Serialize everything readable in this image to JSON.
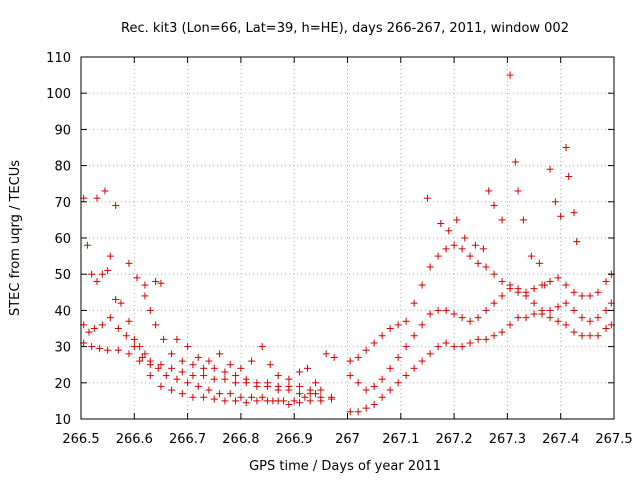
{
  "chart_data": {
    "type": "scatter",
    "title": "Rec. kit3 (Lon=66, Lat=39, h=HE), days 266-267, 2011, window 002",
    "xlabel": "GPS time / Days of year 2011",
    "ylabel": "STEC from uqrg / TECUs",
    "xlim": [
      266.5,
      267.5
    ],
    "ylim": [
      10,
      110
    ],
    "x_ticks": [
      266.5,
      266.6,
      266.7,
      266.8,
      266.9,
      267.0,
      267.1,
      267.2,
      267.3,
      267.4,
      267.5
    ],
    "x_tick_labels": [
      "266.5",
      "266.6",
      "266.7",
      "266.8",
      "266.9",
      "267",
      "267.1",
      "267.2",
      "267.3",
      "267.4",
      "267.5"
    ],
    "y_ticks": [
      10,
      20,
      30,
      40,
      50,
      60,
      70,
      80,
      90,
      100,
      110
    ],
    "y_tick_labels": [
      "10",
      "20",
      "30",
      "40",
      "50",
      "60",
      "70",
      "80",
      "90",
      "100",
      "110"
    ],
    "grid": true,
    "marker": "+",
    "color": "#d40000",
    "series": [
      {
        "name": "arc-a",
        "points": [
          [
            266.505,
            71
          ],
          [
            266.512,
            58
          ],
          [
            266.52,
            50
          ],
          [
            266.53,
            48
          ],
          [
            266.54,
            50
          ],
          [
            266.55,
            51
          ],
          [
            266.555,
            55
          ],
          [
            266.565,
            43
          ],
          [
            266.575,
            42
          ],
          [
            266.59,
            37
          ],
          [
            266.6,
            32
          ],
          [
            266.61,
            30
          ],
          [
            266.62,
            28
          ],
          [
            266.63,
            26
          ],
          [
            266.65,
            25
          ],
          [
            266.67,
            24
          ],
          [
            266.69,
            23
          ],
          [
            266.71,
            22
          ],
          [
            266.73,
            22
          ],
          [
            266.75,
            21
          ],
          [
            266.77,
            21
          ],
          [
            266.79,
            20
          ],
          [
            266.81,
            20
          ],
          [
            266.83,
            19
          ],
          [
            266.85,
            19
          ],
          [
            266.87,
            18
          ],
          [
            266.89,
            18
          ],
          [
            266.91,
            17
          ],
          [
            266.93,
            17
          ],
          [
            266.95,
            16
          ],
          [
            266.97,
            16
          ]
        ]
      },
      {
        "name": "arc-b",
        "points": [
          [
            266.505,
            36
          ],
          [
            266.515,
            34
          ],
          [
            266.525,
            35
          ],
          [
            266.54,
            36
          ],
          [
            266.555,
            38
          ],
          [
            266.57,
            35
          ],
          [
            266.585,
            33
          ],
          [
            266.6,
            30
          ],
          [
            266.615,
            27
          ],
          [
            266.63,
            25
          ],
          [
            266.645,
            24
          ],
          [
            266.66,
            22
          ],
          [
            266.68,
            21
          ],
          [
            266.7,
            20
          ],
          [
            266.72,
            19
          ],
          [
            266.74,
            18
          ],
          [
            266.76,
            17
          ],
          [
            266.78,
            17
          ],
          [
            266.8,
            16
          ],
          [
            266.82,
            16
          ],
          [
            266.84,
            16
          ],
          [
            266.86,
            15
          ],
          [
            266.88,
            15
          ],
          [
            266.9,
            15
          ],
          [
            266.92,
            16
          ],
          [
            266.94,
            17
          ]
        ]
      },
      {
        "name": "arc-c",
        "points": [
          [
            266.505,
            31
          ],
          [
            266.52,
            30
          ],
          [
            266.535,
            29.5
          ],
          [
            266.55,
            29
          ],
          [
            266.57,
            29
          ],
          [
            266.59,
            28
          ],
          [
            266.61,
            26
          ],
          [
            266.63,
            22
          ],
          [
            266.65,
            19
          ],
          [
            266.67,
            18
          ],
          [
            266.69,
            17
          ],
          [
            266.71,
            16
          ],
          [
            266.73,
            16
          ],
          [
            266.75,
            15.5
          ],
          [
            266.77,
            15
          ],
          [
            266.79,
            15
          ],
          [
            266.81,
            14.5
          ],
          [
            266.83,
            15
          ],
          [
            266.85,
            15
          ],
          [
            266.87,
            15
          ],
          [
            266.89,
            14
          ],
          [
            266.91,
            14.5
          ],
          [
            266.93,
            15
          ],
          [
            266.95,
            15
          ],
          [
            266.97,
            15.5
          ]
        ]
      },
      {
        "name": "arc-d",
        "points": [
          [
            266.53,
            71
          ],
          [
            266.545,
            73
          ],
          [
            266.565,
            69
          ],
          [
            266.59,
            53
          ],
          [
            266.605,
            49
          ],
          [
            266.62,
            47
          ],
          [
            266.64,
            48
          ],
          [
            266.65,
            47.5
          ],
          [
            266.62,
            44
          ],
          [
            266.63,
            40
          ],
          [
            266.64,
            36
          ],
          [
            266.655,
            32
          ],
          [
            266.67,
            28
          ],
          [
            266.69,
            26
          ],
          [
            266.71,
            25
          ],
          [
            266.73,
            24
          ],
          [
            266.75,
            24
          ],
          [
            266.77,
            23
          ],
          [
            266.79,
            22
          ],
          [
            266.81,
            21
          ],
          [
            266.83,
            20
          ],
          [
            266.85,
            20
          ],
          [
            266.87,
            19
          ],
          [
            266.89,
            19
          ],
          [
            266.91,
            19
          ],
          [
            266.93,
            18
          ],
          [
            266.95,
            18
          ]
        ]
      },
      {
        "name": "arc-e",
        "points": [
          [
            266.68,
            32
          ],
          [
            266.7,
            30
          ],
          [
            266.72,
            27
          ],
          [
            266.74,
            26
          ],
          [
            266.76,
            28
          ],
          [
            266.78,
            25
          ],
          [
            266.8,
            24
          ],
          [
            266.82,
            26
          ],
          [
            266.84,
            30
          ],
          [
            266.855,
            25
          ],
          [
            266.87,
            22
          ],
          [
            266.89,
            21
          ],
          [
            266.91,
            23
          ],
          [
            266.925,
            24
          ],
          [
            266.94,
            20
          ],
          [
            266.96,
            28
          ],
          [
            266.975,
            27
          ]
        ]
      },
      {
        "name": "arc-f",
        "points": [
          [
            267.005,
            12
          ],
          [
            267.02,
            12
          ],
          [
            267.035,
            13
          ],
          [
            267.05,
            14
          ],
          [
            267.065,
            16
          ],
          [
            267.08,
            18
          ],
          [
            267.095,
            20
          ],
          [
            267.11,
            22
          ],
          [
            267.125,
            24
          ],
          [
            267.14,
            26
          ],
          [
            267.155,
            28
          ],
          [
            267.17,
            30
          ],
          [
            267.185,
            31
          ],
          [
            267.2,
            30
          ],
          [
            267.215,
            30
          ],
          [
            267.23,
            31
          ],
          [
            267.245,
            32
          ],
          [
            267.26,
            32
          ],
          [
            267.275,
            33
          ],
          [
            267.29,
            34
          ],
          [
            267.305,
            36
          ],
          [
            267.32,
            38
          ],
          [
            267.335,
            38
          ],
          [
            267.35,
            39
          ],
          [
            267.365,
            39
          ],
          [
            267.38,
            38
          ],
          [
            267.395,
            37
          ],
          [
            267.41,
            36
          ],
          [
            267.425,
            34
          ],
          [
            267.44,
            33
          ],
          [
            267.455,
            33
          ],
          [
            267.47,
            33
          ],
          [
            267.485,
            35
          ],
          [
            267.495,
            36
          ]
        ]
      },
      {
        "name": "arc-g",
        "points": [
          [
            267.005,
            22
          ],
          [
            267.02,
            20
          ],
          [
            267.035,
            18
          ],
          [
            267.05,
            19
          ],
          [
            267.065,
            21
          ],
          [
            267.08,
            24
          ],
          [
            267.095,
            27
          ],
          [
            267.11,
            30
          ],
          [
            267.125,
            33
          ],
          [
            267.14,
            36
          ],
          [
            267.155,
            39
          ],
          [
            267.17,
            40
          ],
          [
            267.185,
            40
          ],
          [
            267.2,
            39
          ],
          [
            267.215,
            38
          ],
          [
            267.23,
            37
          ],
          [
            267.245,
            38
          ],
          [
            267.26,
            40
          ],
          [
            267.275,
            42
          ],
          [
            267.29,
            44
          ],
          [
            267.305,
            46
          ],
          [
            267.32,
            45
          ],
          [
            267.335,
            44
          ],
          [
            267.35,
            42
          ],
          [
            267.365,
            40
          ],
          [
            267.38,
            40
          ],
          [
            267.395,
            41
          ],
          [
            267.41,
            42
          ],
          [
            267.425,
            40
          ],
          [
            267.44,
            38
          ],
          [
            267.455,
            37
          ],
          [
            267.47,
            38
          ],
          [
            267.485,
            40
          ],
          [
            267.495,
            42
          ]
        ]
      },
      {
        "name": "arc-h",
        "points": [
          [
            267.005,
            26
          ],
          [
            267.02,
            27
          ],
          [
            267.035,
            29
          ],
          [
            267.05,
            31
          ],
          [
            267.065,
            33
          ],
          [
            267.08,
            35
          ],
          [
            267.095,
            36
          ],
          [
            267.11,
            37
          ],
          [
            267.125,
            42
          ],
          [
            267.14,
            47
          ],
          [
            267.155,
            52
          ],
          [
            267.17,
            55
          ],
          [
            267.185,
            57
          ],
          [
            267.2,
            58
          ],
          [
            267.215,
            57
          ],
          [
            267.23,
            55
          ],
          [
            267.245,
            53
          ],
          [
            267.26,
            52
          ],
          [
            267.275,
            50
          ],
          [
            267.29,
            48
          ],
          [
            267.305,
            47
          ],
          [
            267.32,
            46
          ],
          [
            267.335,
            45
          ],
          [
            267.35,
            46
          ],
          [
            267.365,
            47
          ],
          [
            267.38,
            48
          ],
          [
            267.395,
            49
          ],
          [
            267.41,
            47
          ],
          [
            267.425,
            45
          ],
          [
            267.44,
            44
          ],
          [
            267.455,
            44
          ],
          [
            267.47,
            45
          ],
          [
            267.485,
            48
          ],
          [
            267.495,
            50
          ]
        ]
      },
      {
        "name": "arc-i",
        "points": [
          [
            267.15,
            71
          ],
          [
            267.175,
            64
          ],
          [
            267.19,
            62
          ],
          [
            267.205,
            65
          ],
          [
            267.22,
            60
          ],
          [
            267.24,
            58
          ],
          [
            267.255,
            57
          ],
          [
            267.265,
            73
          ],
          [
            267.275,
            69
          ],
          [
            267.29,
            65
          ],
          [
            267.305,
            105
          ],
          [
            267.315,
            81
          ],
          [
            267.32,
            73
          ],
          [
            267.33,
            65
          ],
          [
            267.345,
            55
          ],
          [
            267.36,
            53
          ],
          [
            267.37,
            47
          ],
          [
            267.38,
            79
          ],
          [
            267.39,
            70
          ],
          [
            267.4,
            66
          ],
          [
            267.41,
            85
          ],
          [
            267.415,
            77
          ],
          [
            267.425,
            67
          ],
          [
            267.43,
            59
          ]
        ]
      }
    ]
  }
}
